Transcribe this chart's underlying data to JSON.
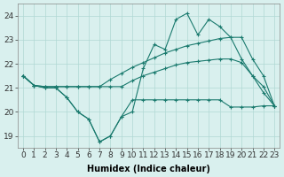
{
  "xlabel": "Humidex (Indice chaleur)",
  "ylabel": "",
  "x": [
    0,
    1,
    2,
    3,
    4,
    5,
    6,
    7,
    8,
    9,
    10,
    11,
    12,
    13,
    14,
    15,
    16,
    17,
    18,
    19,
    20,
    21,
    22,
    23
  ],
  "series_jagged": [
    21.5,
    21.1,
    21.0,
    21.0,
    20.6,
    20.0,
    19.7,
    18.75,
    19.0,
    19.8,
    20.0,
    21.8,
    22.8,
    22.6,
    23.85,
    24.1,
    23.2,
    23.85,
    23.55,
    23.1,
    22.2,
    21.5,
    20.8,
    20.25
  ],
  "series_upper_diag": [
    21.5,
    21.1,
    21.05,
    21.05,
    21.05,
    21.05,
    21.05,
    21.05,
    21.35,
    21.6,
    21.85,
    22.05,
    22.25,
    22.45,
    22.6,
    22.75,
    22.85,
    22.95,
    23.05,
    23.1,
    23.1,
    22.2,
    21.5,
    20.25
  ],
  "series_lower_diag": [
    21.5,
    21.1,
    21.05,
    21.05,
    21.05,
    21.05,
    21.05,
    21.05,
    21.05,
    21.05,
    21.3,
    21.5,
    21.65,
    21.8,
    21.95,
    22.05,
    22.1,
    22.15,
    22.2,
    22.2,
    22.05,
    21.5,
    21.05,
    20.25
  ],
  "series_flat": [
    21.5,
    21.1,
    21.0,
    21.0,
    20.6,
    20.0,
    19.7,
    18.75,
    19.0,
    19.8,
    20.5,
    20.5,
    20.5,
    20.5,
    20.5,
    20.5,
    20.5,
    20.5,
    20.5,
    20.2,
    20.2,
    20.2,
    20.25,
    20.25
  ],
  "line_color": "#1a7a6e",
  "bg_color": "#d9f0ee",
  "grid_color": "#b0d8d4",
  "ylim": [
    18.5,
    24.5
  ],
  "xlim": [
    -0.5,
    23.5
  ],
  "yticks": [
    19,
    20,
    21,
    22,
    23,
    24
  ],
  "xticks": [
    0,
    1,
    2,
    3,
    4,
    5,
    6,
    7,
    8,
    9,
    10,
    11,
    12,
    13,
    14,
    15,
    16,
    17,
    18,
    19,
    20,
    21,
    22,
    23
  ],
  "xtick_labels": [
    "0",
    "1",
    "2",
    "3",
    "4",
    "5",
    "6",
    "7",
    "8",
    "9",
    "10",
    "11",
    "12",
    "13",
    "14",
    "15",
    "16",
    "17",
    "18",
    "19",
    "20",
    "21",
    "22",
    "23"
  ],
  "fontsize_axis": 7,
  "fontsize_tick": 6.5,
  "marker": "+",
  "markersize": 3.5,
  "linewidth": 0.8
}
